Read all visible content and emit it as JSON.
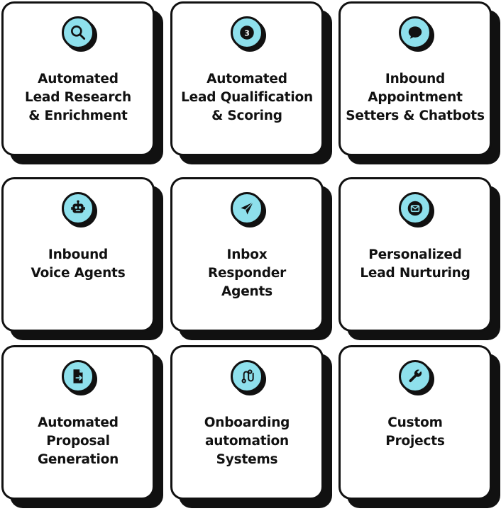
{
  "cards": [
    {
      "icon": "search-icon",
      "lines": [
        "Automated",
        "Lead Research",
        "& Enrichment"
      ]
    },
    {
      "icon": "number-badge-icon",
      "badge": "3",
      "lines": [
        "Automated",
        "Lead Qualification",
        "& Scoring"
      ]
    },
    {
      "icon": "chat-bubble-icon",
      "lines": [
        "Inbound",
        "Appointment",
        "Setters & Chatbots"
      ]
    },
    {
      "icon": "robot-icon",
      "lines": [
        "Inbound",
        "Voice Agents"
      ]
    },
    {
      "icon": "send-icon",
      "lines": [
        "Inbox",
        "Responder",
        "Agents"
      ]
    },
    {
      "icon": "mail-icon",
      "lines": [
        "Personalized",
        "Lead Nurturing"
      ]
    },
    {
      "icon": "document-export-icon",
      "lines": [
        "Automated",
        "Proposal",
        "Generation"
      ]
    },
    {
      "icon": "route-icon",
      "lines": [
        "Onboarding",
        "automation",
        "Systems"
      ]
    },
    {
      "icon": "wrench-icon",
      "lines": [
        "Custom",
        "Projects"
      ]
    }
  ],
  "colors": {
    "accent": "#8ee0ec",
    "ink": "#111111",
    "card": "#ffffff"
  }
}
